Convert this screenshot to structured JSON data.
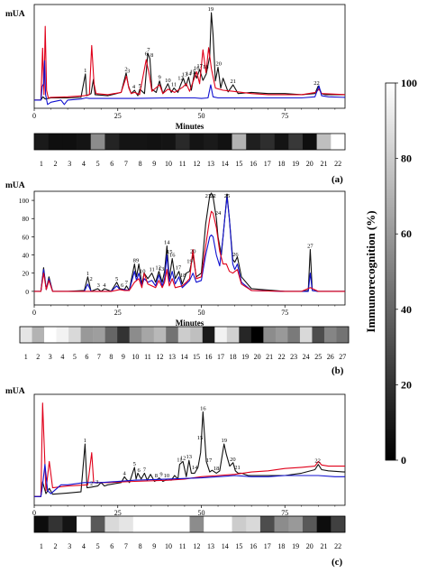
{
  "figure": {
    "colorbar": {
      "label": "Immunorecognition (%)",
      "ticks": [
        0,
        20,
        40,
        60,
        80,
        100
      ],
      "range": [
        0,
        100
      ],
      "gradient": "black (0) to white (100)"
    },
    "line_colors": {
      "black": "#111111",
      "red": "#e0001a",
      "blue": "#1010d0"
    }
  },
  "chart_data": [
    {
      "type": "line",
      "panel_label": "(a)",
      "ylabel": "mUA",
      "xlabel": "Minutes",
      "xlim": [
        0,
        93
      ],
      "xticks": [
        0,
        25,
        50,
        75
      ],
      "series": [
        {
          "color": "#111111",
          "x": [
            0,
            2,
            2.6,
            3.3,
            5,
            10,
            14,
            15.3,
            15.7,
            17,
            17.7,
            18.2,
            22,
            26,
            27.5,
            28.2,
            29,
            30,
            31,
            31.6,
            33,
            34,
            34.6,
            35.2,
            36.5,
            37.5,
            38.5,
            40,
            41,
            41.8,
            43,
            43.8,
            44.6,
            45.4,
            46.2,
            47,
            48,
            48.6,
            49.5,
            50.5,
            51.5,
            52.5,
            53,
            53.5,
            54.2,
            55,
            55.8,
            56.5,
            58,
            59.5,
            61,
            65,
            70,
            75,
            80,
            84,
            85,
            86,
            87,
            93
          ],
          "y": [
            0,
            0,
            6,
            2,
            4,
            4,
            5,
            48,
            8,
            12,
            38,
            10,
            8,
            14,
            50,
            26,
            12,
            18,
            8,
            20,
            12,
            86,
            76,
            20,
            14,
            35,
            12,
            30,
            14,
            22,
            14,
            28,
            40,
            26,
            42,
            18,
            52,
            40,
            56,
            36,
            48,
            80,
            160,
            120,
            35,
            60,
            22,
            40,
            15,
            28,
            12,
            14,
            12,
            12,
            10,
            12,
            26,
            12,
            10,
            10
          ]
        },
        {
          "color": "#e0001a",
          "x": [
            0,
            2,
            2.5,
            2.9,
            3.3,
            3.7,
            4.2,
            5,
            10,
            15,
            16.5,
            17.2,
            17.9,
            18.5,
            22,
            26,
            27.6,
            28.3,
            29,
            30,
            31.5,
            33.5,
            34.5,
            35.2,
            37.5,
            38.5,
            40,
            42,
            44.5,
            45.5,
            46.5,
            48.6,
            49.5,
            50.5,
            51.4,
            52.2,
            53,
            54.2,
            56.5,
            59.5,
            65,
            70,
            75,
            80,
            84.2,
            85.2,
            86,
            93
          ],
          "y": [
            0,
            0,
            95,
            10,
            135,
            18,
            4,
            5,
            6,
            8,
            10,
            100,
            30,
            12,
            10,
            14,
            44,
            22,
            12,
            14,
            10,
            74,
            44,
            16,
            28,
            12,
            20,
            14,
            24,
            30,
            16,
            52,
            30,
            92,
            50,
            96,
            58,
            22,
            18,
            16,
            12,
            10,
            10,
            10,
            14,
            20,
            12,
            10
          ]
        },
        {
          "color": "#1010d0",
          "x": [
            0,
            2,
            2.4,
            2.8,
            3.1,
            3.4,
            4,
            5,
            8,
            9,
            10,
            14,
            15.5,
            16.5,
            20,
            30,
            40,
            45,
            48,
            50,
            52,
            52.8,
            53.5,
            55,
            58,
            62,
            70,
            75,
            80,
            84,
            85.2,
            86,
            88,
            93
          ],
          "y": [
            0,
            0,
            25,
            30,
            72,
            10,
            -8,
            -4,
            0,
            -8,
            0,
            2,
            4,
            3,
            3,
            3,
            4,
            4,
            4,
            3,
            4,
            28,
            6,
            4,
            4,
            4,
            4,
            4,
            4,
            6,
            26,
            8,
            6,
            5
          ]
        }
      ],
      "peak_labels": [
        "1",
        "2",
        "3",
        "4",
        "5",
        "6",
        "7",
        "8",
        "9",
        "10",
        "11",
        "12",
        "13",
        "14",
        "15",
        "16",
        "17",
        "18",
        "19",
        "20",
        "21",
        "22"
      ],
      "strip": {
        "labels": [
          "1",
          "2",
          "3",
          "4",
          "5",
          "6",
          "7",
          "8",
          "9",
          "10",
          "11",
          "12",
          "13",
          "14",
          "15",
          "16",
          "17",
          "18",
          "19",
          "20",
          "21",
          "22"
        ],
        "values": [
          10,
          6,
          6,
          8,
          55,
          14,
          8,
          8,
          7,
          8,
          16,
          8,
          10,
          7,
          70,
          12,
          18,
          8,
          22,
          6,
          75,
          100
        ]
      }
    },
    {
      "type": "line",
      "panel_label": "(b)",
      "ylabel": "mUA",
      "xlabel": "Minutes",
      "xlim": [
        0,
        93
      ],
      "xticks": [
        0,
        25,
        50,
        75
      ],
      "yticks": [
        0,
        20,
        40,
        60,
        80,
        100
      ],
      "ylim": [
        -15,
        100
      ],
      "series": [
        {
          "color": "#111111",
          "x": [
            0,
            2,
            2.8,
            3.6,
            4.4,
            5.5,
            10,
            15,
            16,
            17,
            19,
            20,
            21,
            23,
            24.7,
            25.6,
            27,
            27.6,
            28.4,
            30,
            30.6,
            31.3,
            32.2,
            32.9,
            34,
            35.2,
            36.3,
            37.3,
            38.3,
            39,
            39.7,
            40.4,
            41.3,
            42.2,
            43.3,
            44.3,
            45.5,
            46.5,
            47.5,
            48.5,
            50,
            51.3,
            52.5,
            53,
            53.5,
            54.5,
            55,
            56,
            57,
            57.7,
            58.4,
            59.4,
            60,
            60.8,
            62,
            65,
            75,
            80,
            82,
            82.6,
            83.2,
            85,
            93
          ],
          "y": [
            0,
            0,
            26,
            2,
            16,
            0,
            0,
            1,
            16,
            0,
            3,
            0,
            3,
            0,
            10,
            3,
            2,
            6,
            1,
            30,
            16,
            30,
            8,
            20,
            14,
            20,
            10,
            22,
            10,
            22,
            50,
            14,
            36,
            14,
            22,
            8,
            20,
            22,
            40,
            16,
            20,
            74,
            105,
            108,
            104,
            80,
            60,
            40,
            80,
            107,
            80,
            35,
            32,
            38,
            16,
            3,
            0,
            0,
            1,
            46,
            1,
            0,
            0
          ]
        },
        {
          "color": "#1010d0",
          "x": [
            0,
            2,
            2.8,
            3.6,
            4.4,
            5.5,
            10,
            15,
            16,
            17,
            23,
            24.7,
            25.6,
            27,
            28.4,
            30,
            30.6,
            31.3,
            32.2,
            32.9,
            34,
            35.2,
            36.3,
            37.3,
            38.3,
            39,
            39.7,
            40.4,
            41.3,
            42.2,
            43.3,
            44.3,
            46.5,
            47.5,
            48.5,
            50,
            51.3,
            52.5,
            53,
            53.5,
            54.5,
            55.5,
            56.5,
            57,
            57.7,
            58.4,
            59.4,
            60,
            60.8,
            62,
            65,
            75,
            80,
            82,
            82.6,
            83.2,
            85,
            93
          ],
          "y": [
            0,
            0,
            24,
            2,
            14,
            0,
            0,
            0,
            8,
            0,
            0,
            6,
            2,
            2,
            1,
            22,
            12,
            20,
            6,
            14,
            10,
            12,
            6,
            18,
            6,
            14,
            40,
            10,
            22,
            8,
            16,
            4,
            12,
            20,
            10,
            12,
            40,
            60,
            62,
            60,
            40,
            28,
            60,
            80,
            104,
            80,
            30,
            24,
            30,
            10,
            1,
            0,
            0,
            0,
            20,
            1,
            0,
            0
          ]
        },
        {
          "color": "#e0001a",
          "x": [
            0,
            2,
            2.8,
            3.6,
            4.4,
            5.5,
            10,
            15,
            17,
            23,
            25.6,
            27,
            28.4,
            30,
            31.3,
            32.2,
            32.9,
            34,
            36.3,
            37.3,
            38.3,
            39,
            39.7,
            40.4,
            41.3,
            42.2,
            44.3,
            45.5,
            46.5,
            47.5,
            48.5,
            50,
            51.3,
            52.5,
            53,
            53.5,
            54.5,
            55.5,
            56.5,
            57.5,
            58.4,
            59.4,
            60.8,
            62,
            65,
            75,
            80,
            82.6,
            85,
            93
          ],
          "y": [
            0,
            0,
            20,
            2,
            12,
            0,
            0,
            0,
            0,
            0,
            2,
            1,
            1,
            10,
            14,
            4,
            20,
            8,
            4,
            12,
            4,
            10,
            24,
            6,
            14,
            4,
            6,
            10,
            14,
            46,
            14,
            16,
            50,
            80,
            88,
            86,
            70,
            44,
            30,
            30,
            22,
            20,
            24,
            8,
            1,
            0,
            0,
            4,
            0,
            0
          ]
        }
      ],
      "peak_labels": [
        "1",
        "2",
        "3",
        "4",
        "5",
        "6",
        "7",
        "8",
        "9",
        "10",
        "11",
        "12",
        "13",
        "14",
        "15",
        "16",
        "17",
        "18",
        "19",
        "20",
        "21",
        "22",
        "23",
        "24",
        "25",
        "26",
        "27"
      ],
      "strip": {
        "labels": [
          "1",
          "2",
          "3",
          "4",
          "5",
          "6",
          "7",
          "8",
          "9",
          "10",
          "11",
          "12",
          "13",
          "14",
          "15",
          "16",
          "17",
          "18",
          "19",
          "20",
          "21",
          "22",
          "23",
          "24",
          "25",
          "26",
          "27"
        ],
        "values": [
          90,
          70,
          100,
          95,
          85,
          60,
          62,
          40,
          20,
          55,
          65,
          72,
          45,
          80,
          75,
          10,
          95,
          82,
          15,
          0,
          55,
          60,
          48,
          85,
          30,
          52,
          45
        ]
      }
    },
    {
      "type": "line",
      "panel_label": "(c)",
      "ylabel": "mUA",
      "xlabel": "Minutes",
      "xlim": [
        0,
        93
      ],
      "xticks": [
        0,
        25,
        50,
        75
      ],
      "series": [
        {
          "color": "#111111",
          "x": [
            0,
            2,
            2.5,
            3.5,
            4.5,
            5.5,
            10,
            14,
            15.2,
            15.8,
            17,
            19,
            20,
            21,
            22,
            26,
            27,
            27.5,
            28.5,
            30,
            30.5,
            31,
            32,
            33,
            33.8,
            34.8,
            36,
            36.6,
            37.4,
            38.5,
            40,
            41,
            42,
            43,
            43.5,
            44.5,
            45.5,
            46.3,
            47,
            48,
            49,
            49.8,
            50.5,
            51.5,
            52.5,
            53.2,
            54.5,
            55.5,
            56.8,
            57.5,
            58.5,
            59.5,
            60.2,
            61,
            62,
            64,
            70,
            75,
            80,
            84,
            85,
            86,
            88,
            93
          ],
          "y": [
            0,
            0,
            25,
            5,
            14,
            4,
            6,
            8,
            90,
            15,
            16,
            18,
            24,
            18,
            20,
            24,
            34,
            30,
            24,
            50,
            30,
            40,
            30,
            40,
            28,
            38,
            26,
            28,
            32,
            26,
            30,
            28,
            36,
            30,
            55,
            60,
            34,
            62,
            40,
            40,
            50,
            75,
            145,
            60,
            42,
            45,
            40,
            44,
            90,
            72,
            52,
            58,
            44,
            40,
            40,
            36,
            36,
            36,
            40,
            46,
            55,
            46,
            44,
            42
          ]
        },
        {
          "color": "#e0001a",
          "x": [
            0,
            2,
            2.5,
            3.5,
            4.5,
            5.5,
            10,
            16,
            17.2,
            17.8,
            19,
            22,
            30,
            40,
            45,
            50,
            55,
            60,
            65,
            70,
            75,
            80,
            84,
            85,
            86,
            88,
            93
          ],
          "y": [
            0,
            0,
            160,
            10,
            60,
            15,
            18,
            20,
            75,
            24,
            24,
            24,
            26,
            28,
            30,
            34,
            36,
            38,
            42,
            44,
            48,
            50,
            52,
            60,
            54,
            52,
            52
          ]
        },
        {
          "color": "#1010d0",
          "x": [
            0,
            2,
            2.5,
            3.2,
            4,
            5,
            8,
            10,
            15,
            20,
            30,
            40,
            50,
            55,
            60,
            65,
            70,
            75,
            80,
            85,
            90,
            93
          ],
          "y": [
            0,
            0,
            20,
            55,
            10,
            5,
            20,
            20,
            24,
            24,
            28,
            30,
            32,
            34,
            36,
            34,
            34,
            36,
            36,
            36,
            34,
            34
          ]
        }
      ],
      "peak_labels": [
        "1",
        "2",
        "3",
        "4",
        "5",
        "6",
        "7",
        "8",
        "9",
        "10",
        "11",
        "12",
        "13",
        "14",
        "15",
        "16",
        "17",
        "18",
        "19",
        "20",
        "21",
        "22"
      ],
      "strip": {
        "labels": [
          "1",
          "2",
          "3",
          "4",
          "5",
          "6",
          "7",
          "8",
          "9",
          "10",
          "11",
          "12",
          "13",
          "14",
          "15",
          "16",
          "17",
          "18",
          "19",
          "20",
          "21",
          "22"
        ],
        "values": [
          5,
          20,
          8,
          100,
          35,
          85,
          90,
          100,
          100,
          100,
          100,
          55,
          100,
          100,
          80,
          85,
          30,
          55,
          60,
          35,
          5,
          25
        ]
      }
    }
  ]
}
